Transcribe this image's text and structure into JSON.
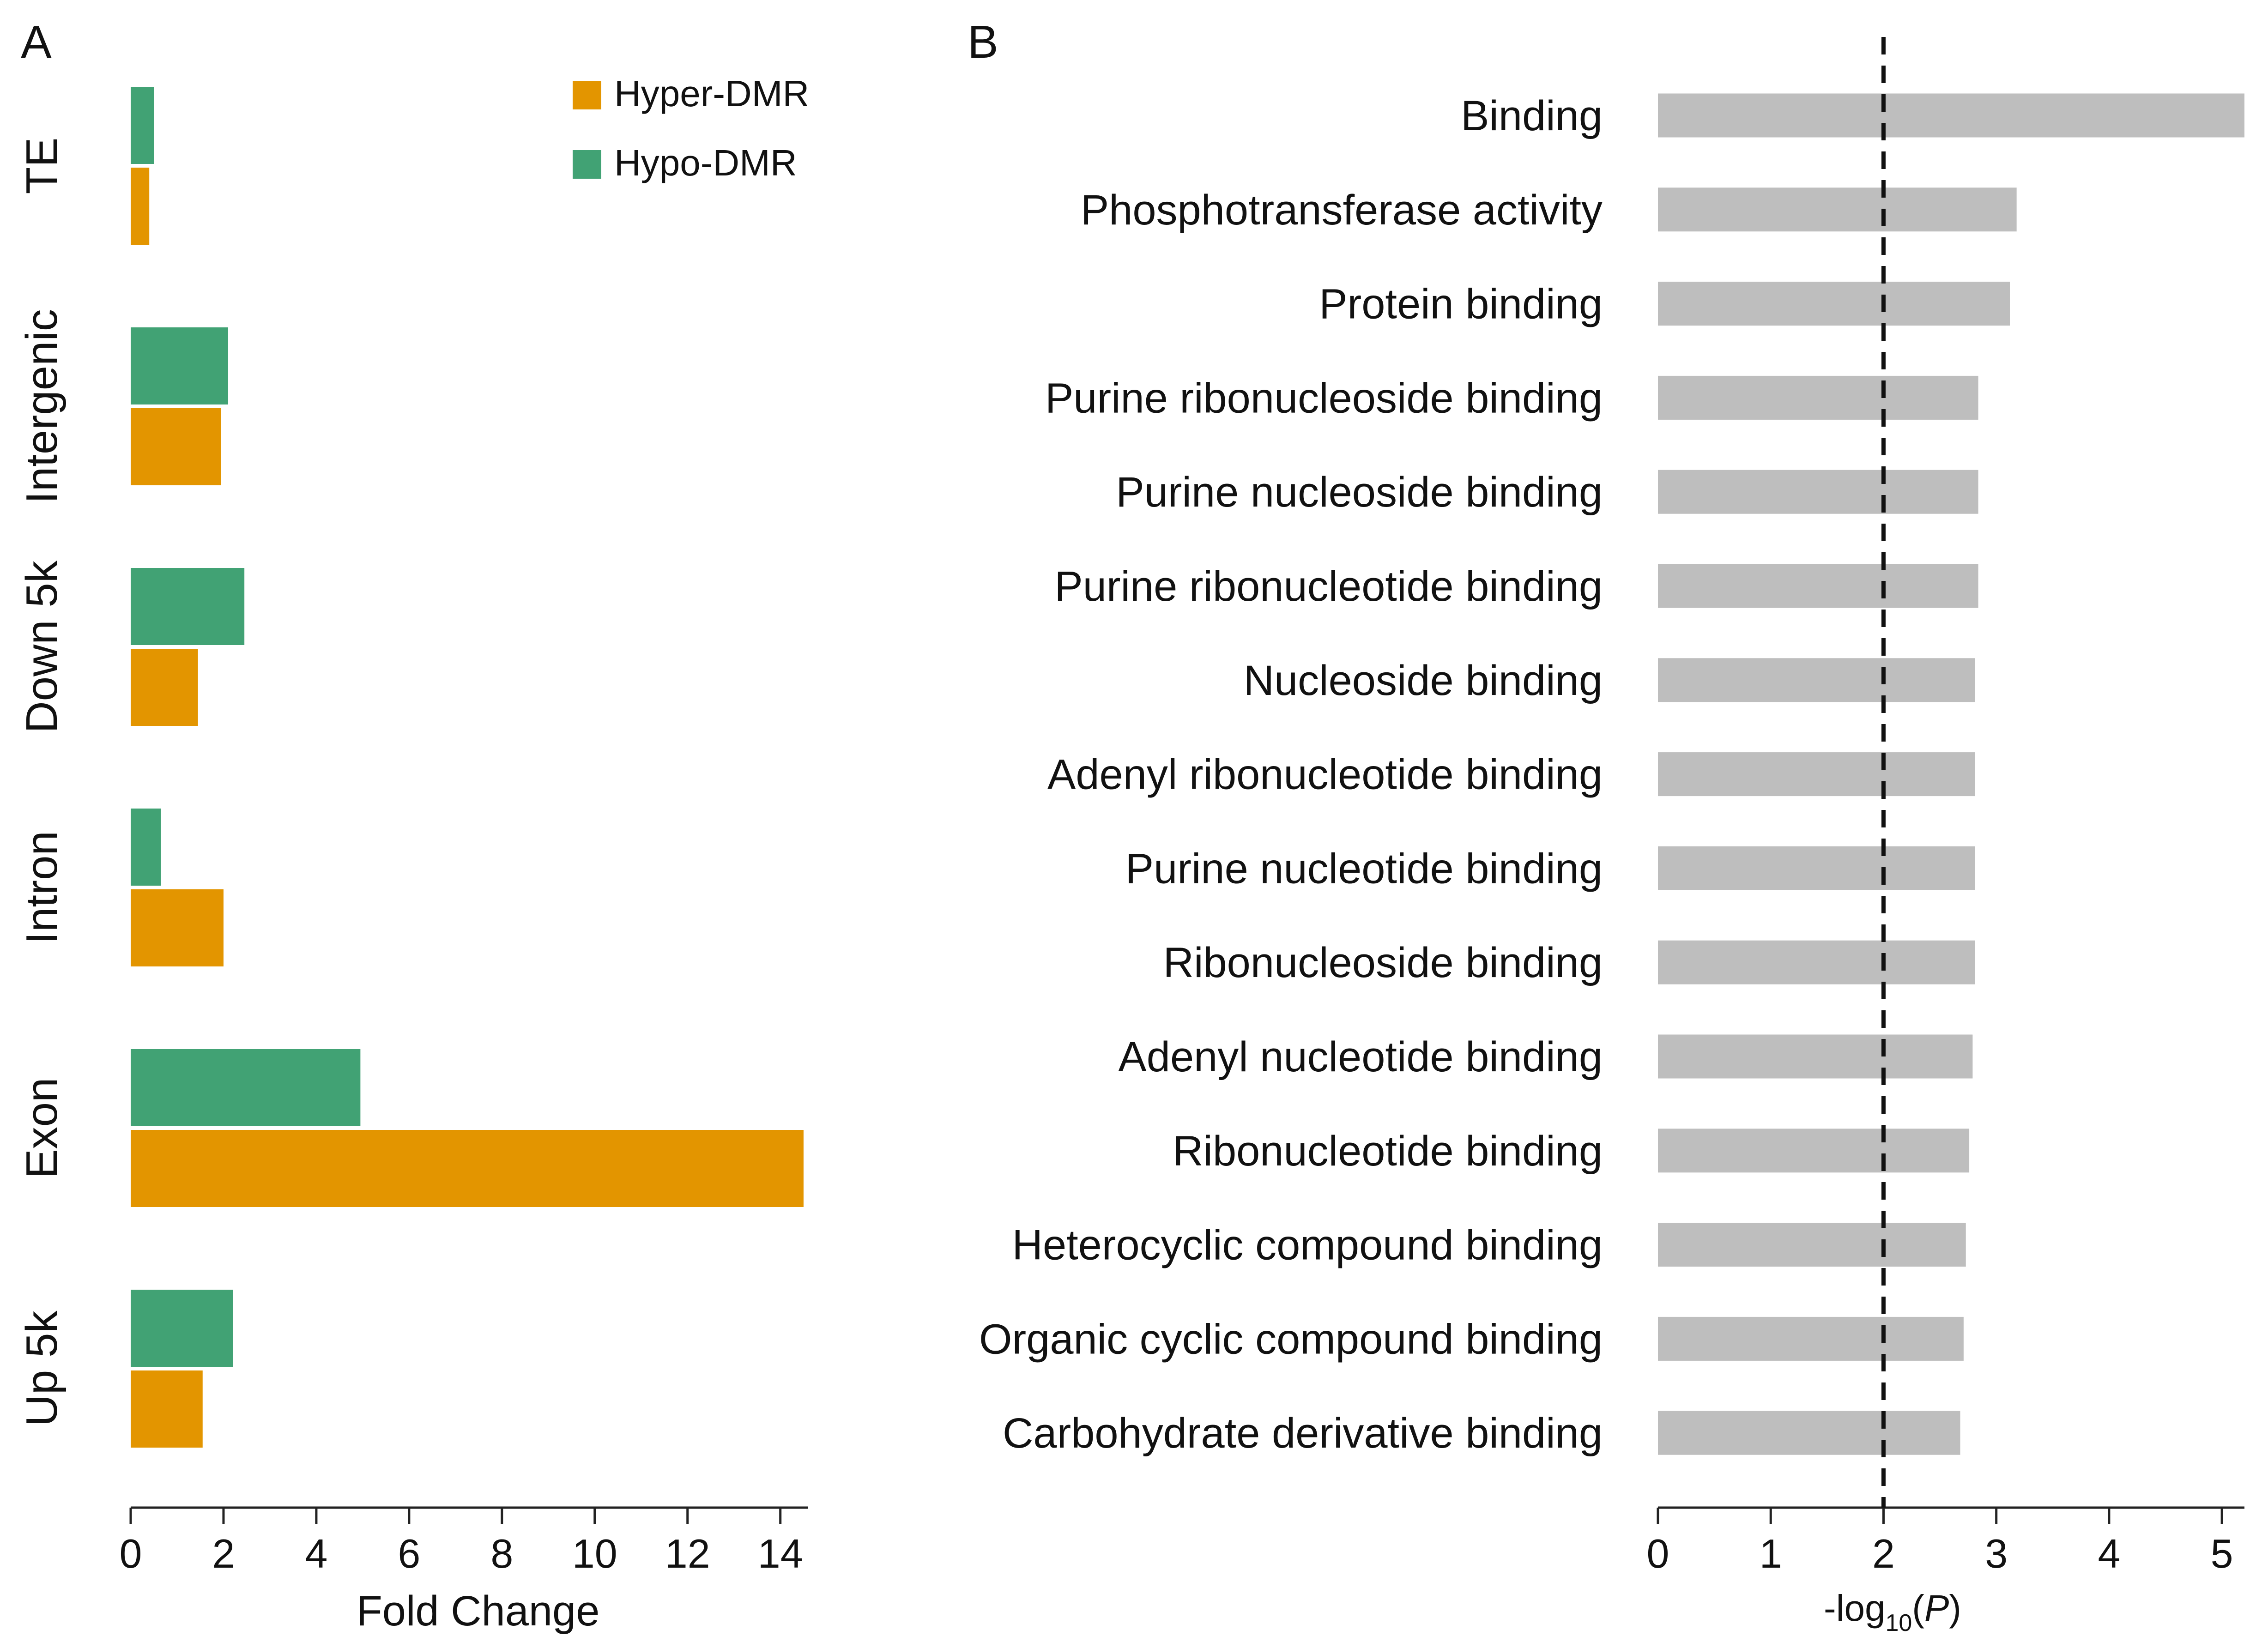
{
  "chart_data": [
    {
      "panel_label": "A",
      "type": "bar",
      "orientation": "horizontal",
      "categories": [
        "TE",
        "Intergenic",
        "Down 5k",
        "Intron",
        "Exon",
        "Up 5k"
      ],
      "series": [
        {
          "name": "Hyper-DMR",
          "color": "#E39500",
          "values": [
            0.4,
            1.95,
            1.45,
            2.0,
            14.5,
            1.55
          ]
        },
        {
          "name": "Hypo-DMR",
          "color": "#41A274",
          "values": [
            0.5,
            2.1,
            2.45,
            0.65,
            4.95,
            2.2
          ]
        }
      ],
      "xlabel": "Fold Change",
      "ylabel": "",
      "xlim": [
        0,
        14.6
      ],
      "xticks": [
        "0",
        "2",
        "4",
        "6",
        "8",
        "10",
        "12",
        "14"
      ],
      "legend": "top-right",
      "grid": false
    },
    {
      "panel_label": "B",
      "type": "bar",
      "orientation": "horizontal",
      "categories": [
        "Binding",
        "Phosphotransferase activity",
        "Protein binding",
        "Purine ribonucleoside binding",
        "Purine nucleoside binding",
        "Purine ribonucleotide binding",
        "Nucleoside binding",
        "Adenyl ribonucleotide binding",
        "Purine nucleotide binding",
        "Ribonucleoside binding",
        "Adenyl nucleotide binding",
        "Ribonucleotide binding",
        "Heterocyclic compound binding",
        "Organic cyclic compound binding",
        "Carbohydrate derivative binding"
      ],
      "values": [
        5.2,
        3.18,
        3.12,
        2.84,
        2.84,
        2.84,
        2.81,
        2.81,
        2.81,
        2.81,
        2.79,
        2.76,
        2.73,
        2.71,
        2.68
      ],
      "color": "#BEBEBE",
      "threshold": 2,
      "xlabel_main": "-log",
      "xlabel_sub": "10",
      "xlabel_open": "(",
      "xlabel_var": "P",
      "xlabel_close": ")",
      "xlim": [
        0,
        5.2
      ],
      "xticks": [
        "0",
        "1",
        "2",
        "3",
        "4",
        "5"
      ],
      "grid": false
    }
  ]
}
